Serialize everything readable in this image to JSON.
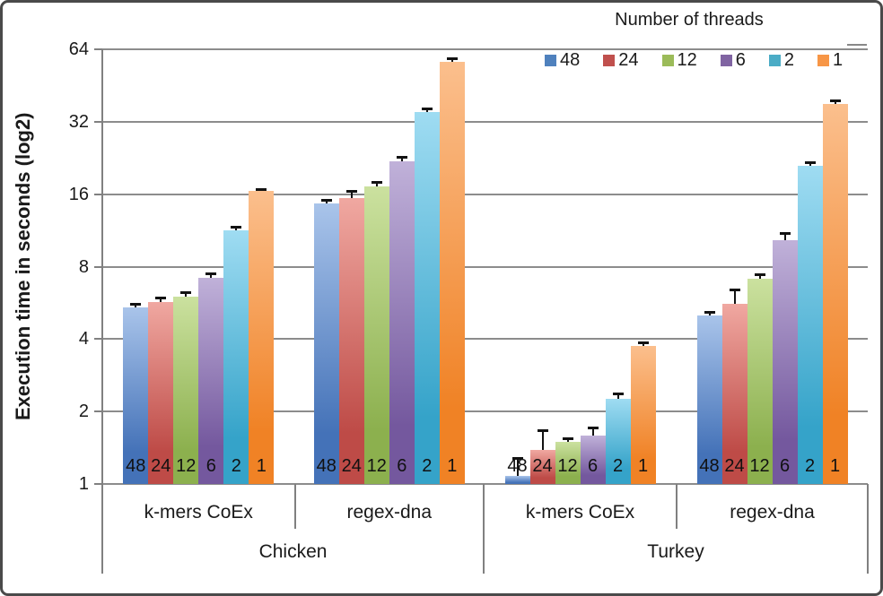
{
  "chart_data": {
    "type": "bar",
    "title": "",
    "ylabel": "Execution time in seconds (log2)",
    "xlabel": "",
    "y_scale": "log2",
    "ylim": [
      1,
      64
    ],
    "y_ticks": [
      "1",
      "2",
      "4",
      "8",
      "16",
      "32",
      "64"
    ],
    "grid": true,
    "legend_title": "Number of threads",
    "legend_position": "top-right",
    "legend_has_error_bar_line_entry": true,
    "series": [
      {
        "label": "48",
        "legend_color": "#4F81BD",
        "color": "#4472B8",
        "color_light": "#A9C4EA"
      },
      {
        "label": "24",
        "legend_color": "#C0504D",
        "color": "#BE4B47",
        "color_light": "#F0A8A1"
      },
      {
        "label": "12",
        "legend_color": "#9BBB59",
        "color": "#8CB04E",
        "color_light": "#CBE19F"
      },
      {
        "label": "6",
        "legend_color": "#8064A2",
        "color": "#74589E",
        "color_light": "#C0B1D9"
      },
      {
        "label": "2",
        "legend_color": "#4BACC6",
        "color": "#35A3C9",
        "color_light": "#9FDCF2"
      },
      {
        "label": "1",
        "legend_color": "#F79646",
        "color": "#F08225",
        "color_light": "#FBBF8D"
      }
    ],
    "animals": [
      "Chicken",
      "Turkey"
    ],
    "groups": [
      {
        "animal": "Chicken",
        "benchmark": "k-mers CoEx",
        "values": [
          5.4,
          5.7,
          6.0,
          7.2,
          11.3,
          16.5
        ],
        "errors_high": [
          5.55,
          5.9,
          6.2,
          7.45,
          11.6,
          16.7
        ]
      },
      {
        "animal": "Chicken",
        "benchmark": "regex-dna",
        "values": [
          14.6,
          15.4,
          17.3,
          22.0,
          35.0,
          57.0
        ],
        "errors_high": [
          15.0,
          16.4,
          17.9,
          22.6,
          35.9,
          58.2
        ]
      },
      {
        "animal": "Turkey",
        "benchmark": "k-mers CoEx",
        "values": [
          1.08,
          1.39,
          1.5,
          1.59,
          2.26,
          3.75
        ],
        "errors_high": [
          1.27,
          1.66,
          1.54,
          1.7,
          2.36,
          3.85
        ]
      },
      {
        "animal": "Turkey",
        "benchmark": "regex-dna",
        "values": [
          5.0,
          5.6,
          7.1,
          10.3,
          21.0,
          38.0
        ],
        "errors_high": [
          5.15,
          6.4,
          7.4,
          10.9,
          21.6,
          38.9
        ]
      }
    ],
    "bar_base_labels": [
      "48",
      "24",
      "12",
      "6",
      "2",
      "1"
    ]
  }
}
